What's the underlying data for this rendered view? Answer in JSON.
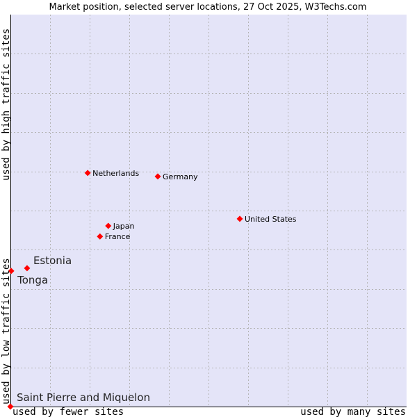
{
  "chart_data": {
    "type": "scatter",
    "title": "Market position, selected server locations, 27 Oct 2025, W3Techs.com",
    "xlabel_low": "used by fewer sites",
    "xlabel_high": "used by many sites",
    "ylabel_low": "used by low traffic sites",
    "ylabel_high": "used by high traffic sites",
    "xlim": [
      0,
      100
    ],
    "ylim": [
      0,
      100
    ],
    "grid": true,
    "grid_divisions": 10,
    "colors": {
      "background": "#e4e4f8",
      "point": "#ff0000",
      "grid": "#b4b4b4"
    },
    "points": [
      {
        "label": "Netherlands",
        "x": 19.5,
        "y": 59.6,
        "highlight": false
      },
      {
        "label": "Germany",
        "x": 37.2,
        "y": 58.7,
        "highlight": false
      },
      {
        "label": "United States",
        "x": 57.9,
        "y": 47.9,
        "highlight": false
      },
      {
        "label": "Japan",
        "x": 24.7,
        "y": 46.1,
        "highlight": false
      },
      {
        "label": "France",
        "x": 22.6,
        "y": 43.4,
        "highlight": false
      },
      {
        "label": "Estonia",
        "x": 4.2,
        "y": 35.3,
        "highlight": true
      },
      {
        "label": "Tonga",
        "x": 0.2,
        "y": 34.6,
        "highlight": true
      },
      {
        "label": "Saint Pierre and Miquelon",
        "x": 0,
        "y": 0,
        "highlight": true
      }
    ]
  }
}
